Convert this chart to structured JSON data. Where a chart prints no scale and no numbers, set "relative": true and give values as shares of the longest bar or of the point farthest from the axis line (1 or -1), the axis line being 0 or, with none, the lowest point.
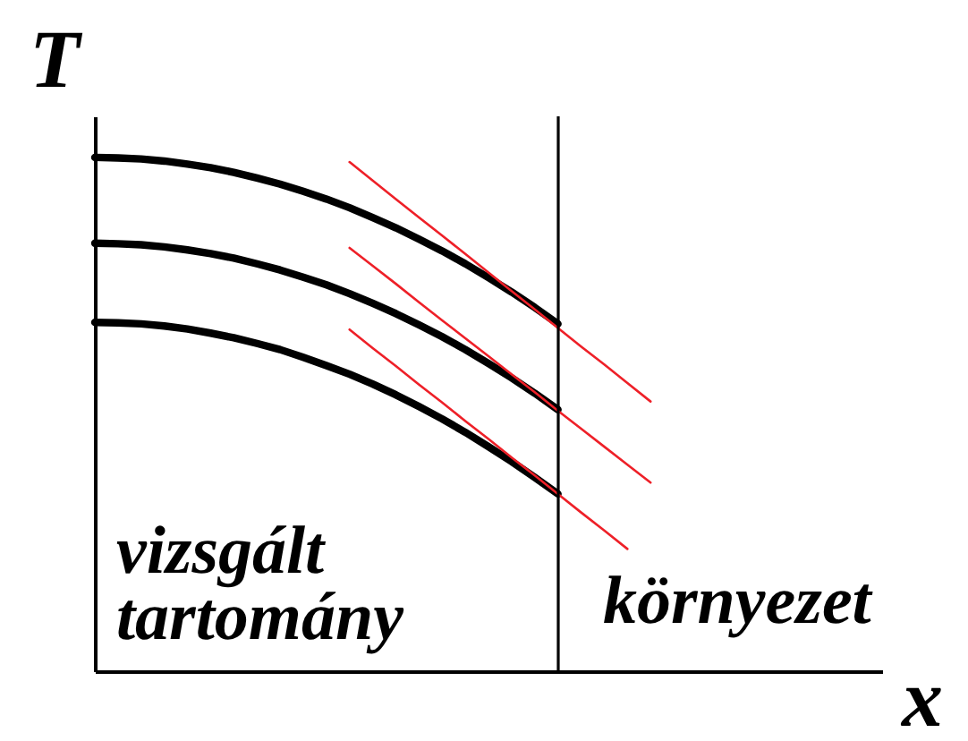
{
  "chart_data": {
    "type": "line",
    "relative": true,
    "xlabel": "x",
    "ylabel": "T",
    "annotations": [
      "vizsgált\ntartomány",
      "környezet"
    ],
    "ylim": [
      0,
      1.08
    ],
    "marker": "none",
    "line_style": "solid",
    "categories": [
      null,
      null,
      null,
      null,
      null,
      null,
      null,
      null,
      null,
      null,
      null,
      null,
      null,
      null,
      null,
      null,
      null,
      null,
      null,
      null,
      null,
      null,
      null,
      null,
      null,
      null,
      null,
      null,
      null,
      null,
      null,
      null,
      null,
      null,
      null
    ],
    "series": [
      {
        "color": "#000000",
        "values": [
          1.0,
          0.999,
          0.997,
          0.993,
          0.987,
          0.98,
          0.971,
          0.96,
          0.948,
          0.934,
          0.919,
          0.902,
          0.883,
          0.863,
          0.841,
          0.818,
          0.793,
          0.766,
          0.738,
          0.708,
          0.676,
          null,
          null,
          null,
          null,
          null,
          null,
          null,
          null,
          null,
          null,
          null,
          null,
          null,
          null
        ]
      },
      {
        "color": "#000000",
        "values": [
          0.833,
          0.832,
          0.83,
          0.826,
          0.82,
          0.813,
          0.804,
          0.793,
          0.781,
          0.767,
          0.752,
          0.735,
          0.716,
          0.696,
          0.674,
          0.651,
          0.626,
          0.599,
          0.571,
          0.541,
          0.509,
          null,
          null,
          null,
          null,
          null,
          null,
          null,
          null,
          null,
          null,
          null,
          null,
          null,
          null
        ]
      },
      {
        "color": "#000000",
        "values": [
          0.679,
          0.678,
          0.676,
          0.672,
          0.666,
          0.658,
          0.649,
          0.638,
          0.626,
          0.611,
          0.595,
          0.578,
          0.559,
          0.538,
          0.515,
          0.491,
          0.465,
          0.437,
          0.408,
          0.377,
          0.345,
          null,
          null,
          null,
          null,
          null,
          null,
          null,
          null,
          null,
          null,
          null,
          null,
          null,
          null
        ]
      },
      {
        "type": "line",
        "color": "#ee2028",
        "values": [
          null,
          null,
          null,
          null,
          null,
          null,
          null,
          null,
          null,
          null,
          null,
          0.991,
          0.955,
          0.919,
          0.883,
          0.848,
          0.812,
          0.776,
          0.74,
          0.704,
          0.668,
          0.632,
          0.597,
          0.561,
          0.525,
          null,
          null,
          null,
          null,
          null,
          null,
          null,
          null,
          null,
          null
        ]
      },
      {
        "type": "line",
        "color": "#ee2028",
        "values": [
          null,
          null,
          null,
          null,
          null,
          null,
          null,
          null,
          null,
          null,
          null,
          0.824,
          0.789,
          0.754,
          0.718,
          0.683,
          0.648,
          0.613,
          0.578,
          0.543,
          0.507,
          0.472,
          0.437,
          0.402,
          0.367,
          null,
          null,
          null,
          null,
          null,
          null,
          null,
          null,
          null,
          null
        ]
      },
      {
        "type": "line",
        "color": "#ee2028",
        "values": [
          null,
          null,
          null,
          null,
          null,
          null,
          null,
          null,
          null,
          null,
          null,
          0.665,
          0.629,
          0.594,
          0.558,
          0.523,
          0.487,
          0.452,
          0.416,
          0.381,
          0.345,
          0.309,
          0.274,
          0.238,
          null,
          null,
          null,
          null,
          null,
          null,
          null,
          null,
          null,
          null,
          null
        ]
      }
    ]
  }
}
